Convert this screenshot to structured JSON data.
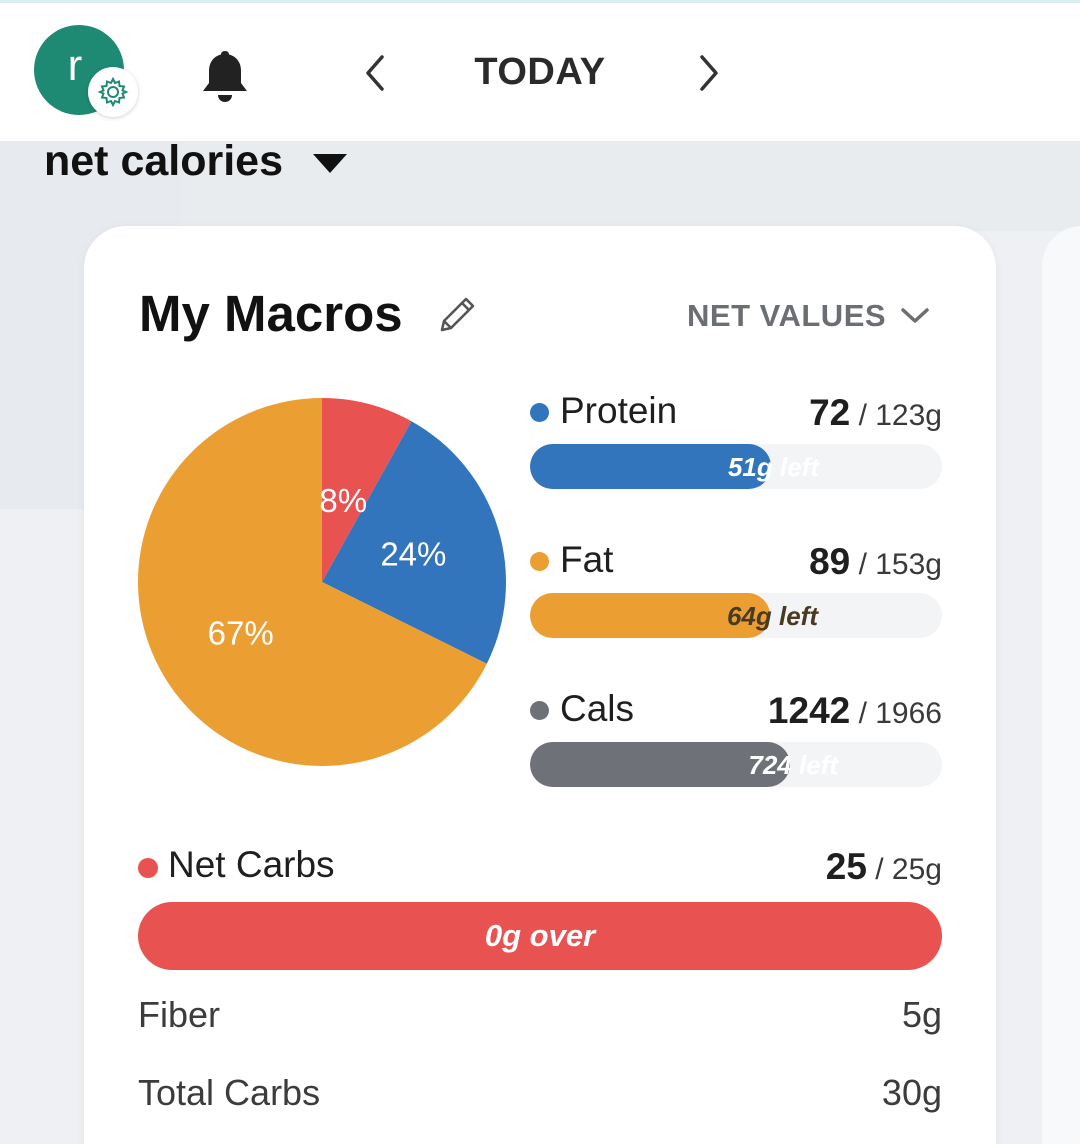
{
  "header": {
    "avatar_initial": "r",
    "date_title": "TODAY"
  },
  "view_selector": {
    "label": "net calories"
  },
  "card": {
    "title": "My Macros",
    "mode_label": "NET VALUES"
  },
  "colors": {
    "protein": "#3275bd",
    "fat": "#eb9f33",
    "cals": "#6e7178",
    "net_carbs": "#e85351"
  },
  "pie": {
    "slices": [
      {
        "name": "Net Carbs",
        "percent": 8,
        "label": "8%",
        "color": "#e85351"
      },
      {
        "name": "Protein",
        "percent": 24,
        "label": "24%",
        "color": "#3275bd"
      },
      {
        "name": "Fat",
        "percent": 67,
        "label": "67%",
        "color": "#eb9f33"
      }
    ]
  },
  "macros": [
    {
      "name": "Protein",
      "value": "72",
      "goal": "/ 123g",
      "progress": 0.585,
      "left_label": "51g left",
      "color": "#3275bd"
    },
    {
      "name": "Fat",
      "value": "89",
      "goal": "/ 153g",
      "progress": 0.582,
      "left_label": "64g left",
      "color": "#eb9f33"
    },
    {
      "name": "Cals",
      "value": "1242",
      "goal": "/ 1966",
      "progress": 0.632,
      "left_label": "724 left",
      "color": "#6e7178"
    }
  ],
  "net_carbs": {
    "name": "Net Carbs",
    "value": "25",
    "goal": "/ 25g",
    "status_label": "0g over",
    "progress": 1.0
  },
  "details": [
    {
      "label": "Fiber",
      "value": "5g"
    },
    {
      "label": "Total Carbs",
      "value": "30g"
    }
  ]
}
